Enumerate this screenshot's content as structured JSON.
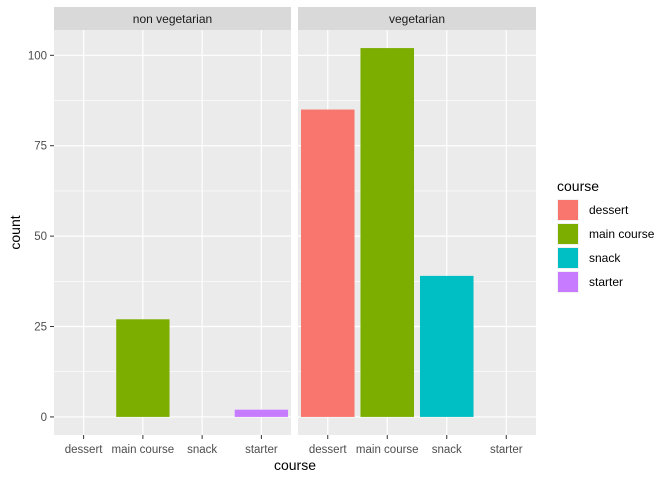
{
  "chart_data": {
    "type": "bar",
    "xlabel": "course",
    "ylabel": "count",
    "ylim": [
      -5,
      107
    ],
    "yticks": [
      0,
      25,
      50,
      75,
      100
    ],
    "categories": [
      "dessert",
      "main course",
      "snack",
      "starter"
    ],
    "panels": [
      {
        "name": "non vegetarian",
        "values": [
          0,
          27,
          0,
          2
        ]
      },
      {
        "name": "vegetarian",
        "values": [
          85,
          102,
          39,
          0
        ]
      }
    ],
    "legend": {
      "title": "course",
      "placement": "right",
      "items": [
        {
          "label": "dessert",
          "color": "#F8766D"
        },
        {
          "label": "main course",
          "color": "#7CAE00"
        },
        {
          "label": "snack",
          "color": "#00BFC4"
        },
        {
          "label": "starter",
          "color": "#C77CFF"
        }
      ]
    },
    "grid": true,
    "colors": {
      "panel_bg": "#EBEBEB",
      "strip_bg": "#D9D9D9",
      "grid": "#FFFFFF"
    }
  }
}
